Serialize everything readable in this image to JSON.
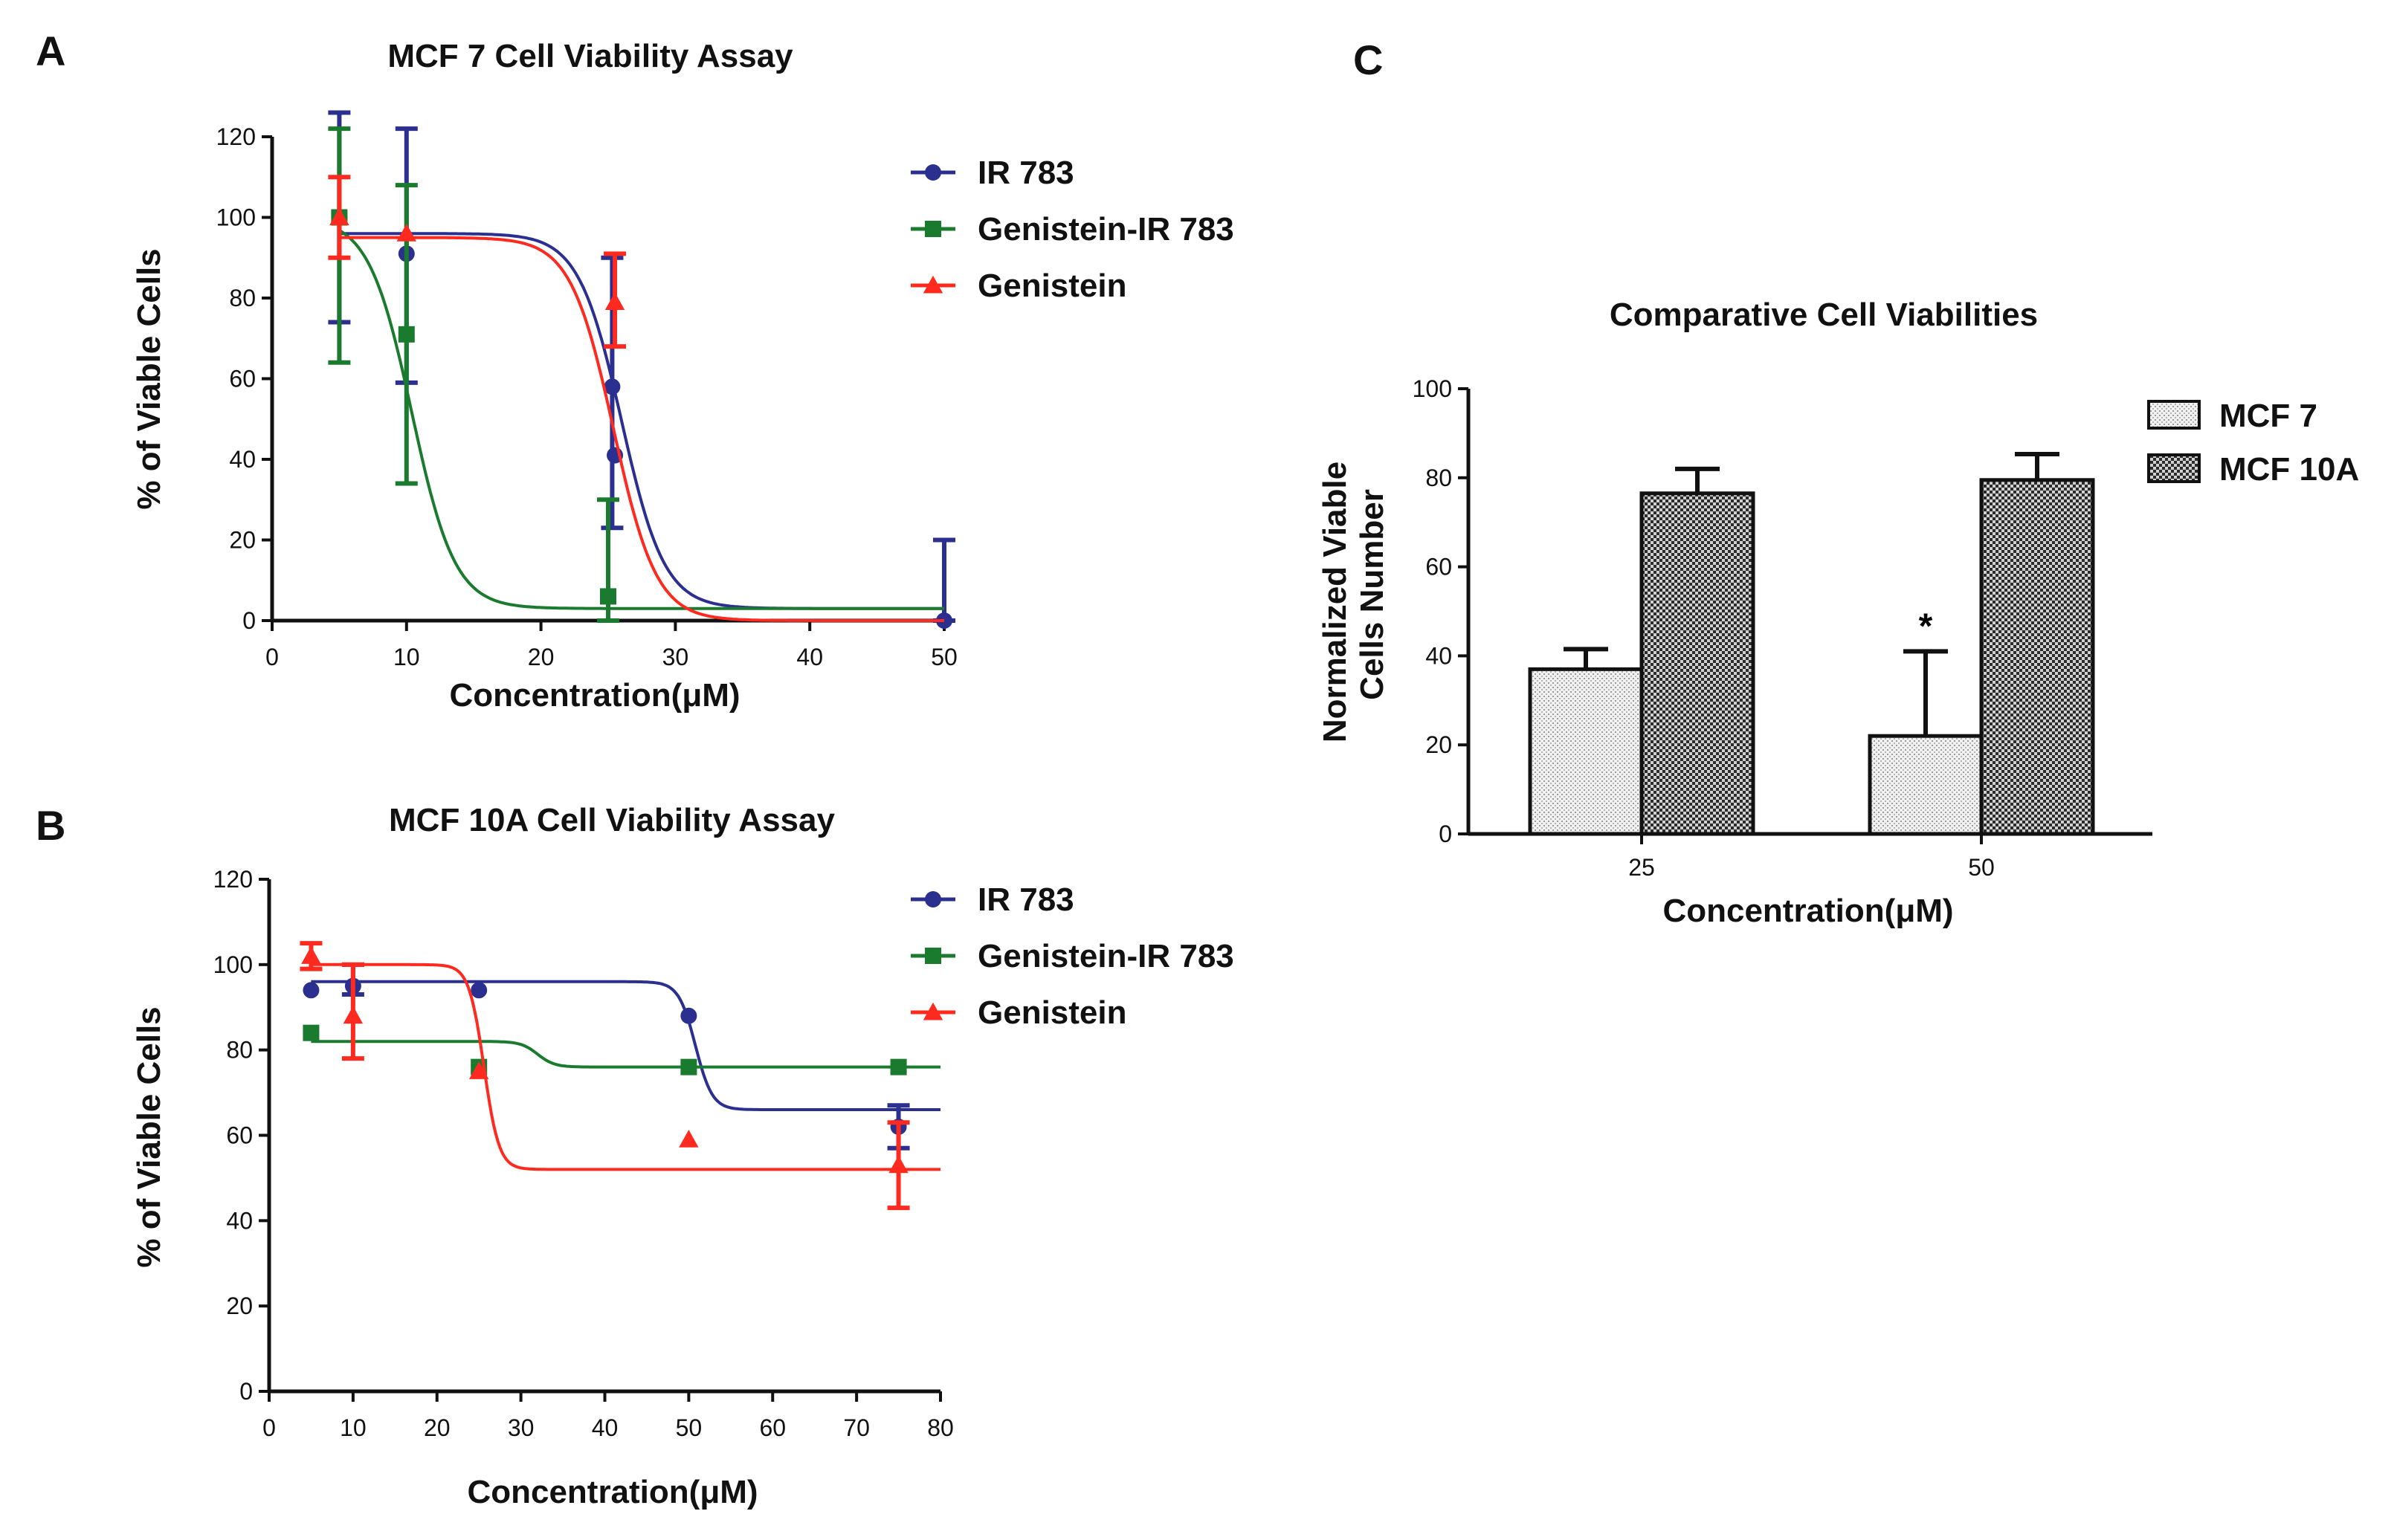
{
  "panels": {
    "A": "A",
    "B": "B",
    "C": "C"
  },
  "chart_data": [
    {
      "id": "A",
      "type": "line",
      "title": "MCF 7 Cell Viability Assay",
      "xlabel": "Concentration(μM)",
      "ylabel": "% of Viable Cells",
      "xlim": [
        0,
        50
      ],
      "ylim": [
        0,
        120
      ],
      "xticks": [
        0,
        10,
        20,
        30,
        40,
        50
      ],
      "yticks": [
        0,
        20,
        40,
        60,
        80,
        100,
        120
      ],
      "legend_position": "top-right",
      "series": [
        {
          "name": "IR 783",
          "color": "#2b2f8f",
          "marker": "circle",
          "points": [
            {
              "x": 5,
              "y": 100,
              "err_low": 74,
              "err_high": 126
            },
            {
              "x": 10,
              "y": 91,
              "err_low": 59,
              "err_high": 122
            },
            {
              "x": 25.3,
              "y": 58,
              "err_low": 23,
              "err_high": 90
            },
            {
              "x": 25.5,
              "y": 41
            },
            {
              "x": 50,
              "y": 0,
              "err_low": 0,
              "err_high": 20
            }
          ],
          "fit": {
            "top": 96,
            "bottom": 3,
            "ec50": 26.0,
            "k": 1.6
          }
        },
        {
          "name": "Genistein-IR 783",
          "color": "#1a7a2e",
          "marker": "square",
          "points": [
            {
              "x": 5,
              "y": 100,
              "err_low": 64,
              "err_high": 122
            },
            {
              "x": 10,
              "y": 71,
              "err_low": 34,
              "err_high": 108
            },
            {
              "x": 25,
              "y": 6,
              "err_low": 0,
              "err_high": 30
            }
          ],
          "fit": {
            "top": 100,
            "bottom": 3,
            "ec50": 10.4,
            "k": 1.6
          }
        },
        {
          "name": "Genistein",
          "color": "#ff2a1f",
          "marker": "triangle",
          "points": [
            {
              "x": 5,
              "y": 100,
              "err_low": 90,
              "err_high": 110
            },
            {
              "x": 10,
              "y": 96
            },
            {
              "x": 25.5,
              "y": 79,
              "err_low": 68,
              "err_high": 91
            }
          ],
          "fit": {
            "top": 95,
            "bottom": 0,
            "ec50": 25.4,
            "k": 1.6
          }
        }
      ]
    },
    {
      "id": "B",
      "type": "line",
      "title": "MCF 10A Cell Viability Assay",
      "xlabel": "Concentration(μM)",
      "ylabel": "% of Viable Cells",
      "xlim": [
        0,
        80
      ],
      "ylim": [
        0,
        120
      ],
      "xticks": [
        0,
        10,
        20,
        30,
        40,
        50,
        60,
        70,
        80
      ],
      "yticks": [
        0,
        20,
        40,
        60,
        80,
        100,
        120
      ],
      "legend_position": "top-right",
      "series": [
        {
          "name": "IR 783",
          "color": "#2b2f8f",
          "marker": "circle",
          "points": [
            {
              "x": 5,
              "y": 94
            },
            {
              "x": 10,
              "y": 95,
              "err_low": 93,
              "err_high": 100
            },
            {
              "x": 25,
              "y": 94
            },
            {
              "x": 50,
              "y": 88
            },
            {
              "x": 75,
              "y": 62,
              "err_low": 57,
              "err_high": 67
            }
          ],
          "fit": {
            "top": 96,
            "bottom": 66,
            "ec50": 50.8,
            "k": 1.0
          }
        },
        {
          "name": "Genistein-IR 783",
          "color": "#1a7a2e",
          "marker": "square",
          "points": [
            {
              "x": 5,
              "y": 84
            },
            {
              "x": 25,
              "y": 76
            },
            {
              "x": 50,
              "y": 76
            },
            {
              "x": 75,
              "y": 76
            }
          ],
          "fit": {
            "top": 82,
            "bottom": 76,
            "ec50": 32.0,
            "k": 1.0
          }
        },
        {
          "name": "Genistein",
          "color": "#ff2a1f",
          "marker": "triangle",
          "points": [
            {
              "x": 5,
              "y": 102,
              "err_low": 99,
              "err_high": 105
            },
            {
              "x": 10,
              "y": 88,
              "err_low": 78,
              "err_high": 100
            },
            {
              "x": 25,
              "y": 75
            },
            {
              "x": 50,
              "y": 59
            },
            {
              "x": 75,
              "y": 53,
              "err_low": 43,
              "err_high": 63
            }
          ],
          "fit": {
            "top": 100,
            "bottom": 52,
            "ec50": 25.6,
            "k": 0.9
          }
        }
      ]
    },
    {
      "id": "C",
      "type": "bar",
      "title": "Comparative Cell Viabilities",
      "xlabel": "Concentration(μM)",
      "ylabel_lines": [
        "Normalized Viable",
        "Cells Number"
      ],
      "categories": [
        "25",
        "50"
      ],
      "ylim": [
        0,
        100
      ],
      "yticks": [
        0,
        20,
        40,
        60,
        80,
        100
      ],
      "legend_position": "top-right",
      "series": [
        {
          "name": "MCF 7",
          "pattern": "light",
          "values": [
            37,
            22
          ],
          "errors": [
            4.5,
            19
          ]
        },
        {
          "name": "MCF 10A",
          "pattern": "dark",
          "values": [
            76.5,
            79.5
          ],
          "errors": [
            5.5,
            5.8
          ]
        }
      ],
      "annotations": [
        {
          "category": "50",
          "series": "MCF 7",
          "text": "*"
        }
      ]
    }
  ]
}
